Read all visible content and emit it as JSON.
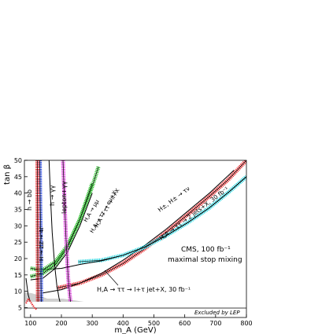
{
  "chart_data": {
    "type": "line",
    "xlabel": "m_A (GeV)",
    "ylabel": "tan β",
    "xlim": [
      80,
      800
    ],
    "ylim": [
      2,
      50
    ],
    "x_ticks": [
      "100",
      "200",
      "300",
      "400",
      "500",
      "600",
      "700",
      "800"
    ],
    "y_ticks": [
      "5",
      "10",
      "15",
      "20",
      "25",
      "30",
      "35",
      "40",
      "45",
      "50"
    ],
    "grid": false,
    "annotations": {
      "cms": "CMS, 100 fb⁻¹",
      "mixing": "maximal stop mixing",
      "jet": "H,A → ττ → l+τ jet+X, 30 fb⁻¹",
      "two_jets": "H,A → ττ → 2 jets+X, 30 fb⁻¹",
      "charged": "H±, H± → τν",
      "mumu": "H,A → μμ",
      "emu": "H,A → ττ → eμ+X",
      "ll": "H,A → ττ → ll+X",
      "hbb": "h → bb",
      "hgg": "h → γγ",
      "lepgg": "lepton+γγ",
      "zz": "H → ZZ → 4ℓ",
      "lep": "Excluded by LEP"
    },
    "colors": {
      "red": "#e8262a",
      "black": "#000000",
      "cyan": "#21d4df",
      "green": "#2fbf2f",
      "blue": "#1f3fe0",
      "magenta": "#e03ce0",
      "lep_fill": "#cfcfcf"
    },
    "series": [
      {
        "color": "red",
        "style": "band",
        "x": [
          185,
          260,
          330,
          400,
          470,
          540,
          610,
          680,
          740,
          800
        ],
        "y": [
          11,
          12.5,
          15,
          18.5,
          23,
          28,
          33.5,
          39,
          44,
          50
        ]
      },
      {
        "color": "black",
        "style": "line",
        "x": [
          140,
          200,
          260,
          330,
          400,
          470,
          540,
          610,
          680,
          760
        ],
        "y": [
          9.5,
          10.5,
          12.5,
          15.5,
          19.5,
          24,
          29,
          34.5,
          40,
          47
        ]
      },
      {
        "color": "cyan",
        "style": "band",
        "x": [
          255,
          330,
          400,
          470,
          540,
          610,
          680,
          745,
          800
        ],
        "y": [
          19,
          19.5,
          21,
          23.5,
          27,
          31,
          35.5,
          40.5,
          45
        ]
      },
      {
        "color": "black",
        "style": "line",
        "x": [
          115,
          200,
          260,
          330,
          400,
          470,
          540,
          610,
          680,
          745,
          800
        ],
        "y": [
          16.5,
          17,
          18.2,
          19.3,
          21,
          23.5,
          27,
          31,
          35.5,
          40.5,
          45
        ]
      },
      {
        "color": "green",
        "style": "band",
        "x": [
          100,
          140,
          180,
          220,
          260,
          300,
          320
        ],
        "y": [
          17,
          16.5,
          19,
          24,
          32,
          42,
          48
        ]
      },
      {
        "color": "green",
        "style": "band",
        "x": [
          100,
          140,
          180,
          220,
          260,
          300
        ],
        "y": [
          14.5,
          15.5,
          18,
          23.5,
          32,
          43
        ]
      },
      {
        "color": "black",
        "style": "line",
        "x": [
          100,
          140,
          180,
          220,
          260,
          300
        ],
        "y": [
          13.5,
          14,
          17,
          22,
          30,
          40
        ]
      },
      {
        "color": "blue",
        "style": "band",
        "x": [
          130,
          131,
          133,
          134,
          135
        ],
        "y": [
          50,
          38,
          26,
          12,
          4
        ]
      },
      {
        "color": "red",
        "style": "band",
        "x": [
          122,
          123,
          124
        ],
        "y": [
          50,
          28,
          4
        ]
      },
      {
        "color": "magenta",
        "style": "band",
        "x": [
          205,
          210,
          215,
          222,
          230,
          235
        ],
        "y": [
          50,
          38,
          26,
          14,
          6,
          2
        ]
      },
      {
        "color": "black",
        "style": "line",
        "x": [
          160,
          165,
          170,
          178,
          185,
          192,
          200,
          210,
          220
        ],
        "y": [
          50,
          38,
          28,
          18,
          12,
          8,
          5,
          3,
          2
        ]
      },
      {
        "color": "black",
        "style": "line",
        "x": [
          85,
          92,
          100,
          110,
          120,
          135,
          150,
          175,
          200,
          215
        ],
        "y": [
          14,
          9,
          6.5,
          5,
          4.5,
          4,
          3.6,
          3,
          2.5,
          2
        ]
      }
    ]
  }
}
